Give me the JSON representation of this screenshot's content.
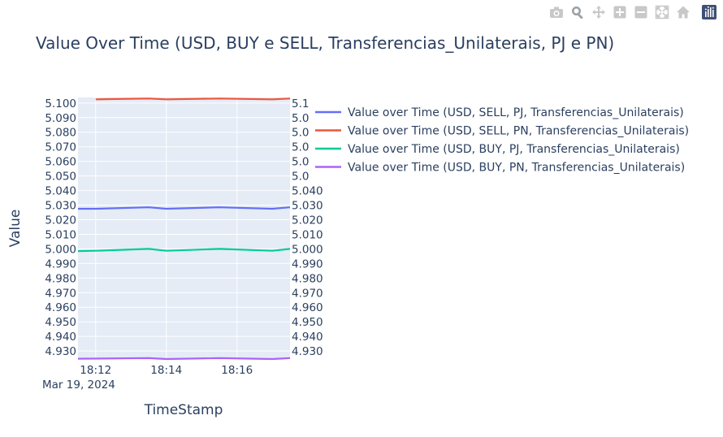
{
  "modebar": {
    "buttons": [
      {
        "name": "camera-icon"
      },
      {
        "name": "zoom-icon"
      },
      {
        "name": "pan-icon"
      },
      {
        "name": "zoom-in-icon"
      },
      {
        "name": "zoom-out-icon"
      },
      {
        "name": "autoscale-icon"
      },
      {
        "name": "reset-axes-icon"
      }
    ],
    "logo": {
      "name": "plotly-logo-icon"
    }
  },
  "chart_data": {
    "type": "line",
    "title": "Value Over Time (USD, BUY e SELL, Transferencias_Unilaterais, PJ e PN)",
    "xlabel": "TimeStamp",
    "ylabel": "Value",
    "x_date_label": "Mar 19, 2024",
    "xlim": [
      "18:11:30",
      "18:17:30"
    ],
    "x_ticks": [
      "18:12",
      "18:14",
      "18:16"
    ],
    "ylim": [
      4.9245,
      5.1038
    ],
    "y_ticks": [
      "4.930",
      "4.940",
      "4.950",
      "4.960",
      "4.970",
      "4.980",
      "4.990",
      "5.000",
      "5.010",
      "5.020",
      "5.030",
      "5.040",
      "5.050",
      "5.060",
      "5.070",
      "5.080",
      "5.090",
      "5.100"
    ],
    "right_y_ticks": [
      "4.930",
      "4.940",
      "4.950",
      "4.960",
      "4.970",
      "4.980",
      "4.990",
      "5.000",
      "5.010",
      "5.020",
      "5.030",
      "5.040",
      "5.0",
      "5.0",
      "5.0",
      "5.0",
      "5.0",
      "5.1"
    ],
    "grid": true,
    "legend_position": "right",
    "series": [
      {
        "name": "Value over Time (USD, SELL, PJ, Transferencias_Unilaterais)",
        "color": "#636efa",
        "x": [
          "18:11:30",
          "18:12:00",
          "18:13:30",
          "18:14:00",
          "18:15:30",
          "18:17:00",
          "18:17:30"
        ],
        "y": [
          5.0275,
          5.0275,
          5.0285,
          5.0275,
          5.0285,
          5.0275,
          5.0285
        ]
      },
      {
        "name": "Value over Time (USD, SELL, PN, Transferencias_Unilaterais)",
        "color": "#ef553b",
        "x": [
          "18:12:00",
          "18:13:30",
          "18:14:00",
          "18:15:30",
          "18:17:00",
          "18:17:30"
        ],
        "y": [
          5.1025,
          5.1031,
          5.1025,
          5.1031,
          5.1025,
          5.1031
        ]
      },
      {
        "name": "Value over Time (USD, BUY, PJ, Transferencias_Unilaterais)",
        "color": "#00cc96",
        "x": [
          "18:11:30",
          "18:12:00",
          "18:13:30",
          "18:14:00",
          "18:15:30",
          "18:17:00",
          "18:17:30"
        ],
        "y": [
          4.9985,
          4.9987,
          5.0,
          4.9987,
          5.0,
          4.9987,
          5.0
        ]
      },
      {
        "name": "Value over Time (USD, BUY, PN, Transferencias_Unilaterais)",
        "color": "#ab63fa",
        "x": [
          "18:11:30",
          "18:13:30",
          "18:14:00",
          "18:15:30",
          "18:17:00",
          "18:17:30"
        ],
        "y": [
          4.9247,
          4.9251,
          4.9245,
          4.9251,
          4.9245,
          4.9251
        ]
      }
    ]
  }
}
